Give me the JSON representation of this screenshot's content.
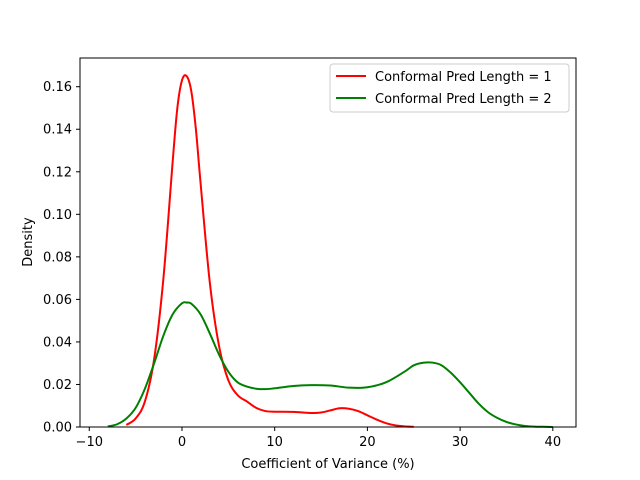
{
  "chart_data": {
    "type": "line",
    "title": "",
    "xlabel": "Coefficient of Variance (%)",
    "ylabel": "Density",
    "xlim": [
      -11,
      42.5
    ],
    "ylim": [
      0,
      0.1735
    ],
    "xticks": [
      -10,
      0,
      10,
      20,
      30,
      40
    ],
    "xtick_labels": [
      "−10",
      "0",
      "10",
      "20",
      "30",
      "40"
    ],
    "yticks": [
      0,
      0.02,
      0.04,
      0.06,
      0.08,
      0.1,
      0.12,
      0.14,
      0.16
    ],
    "ytick_labels": [
      "0.00",
      "0.02",
      "0.04",
      "0.06",
      "0.08",
      "0.10",
      "0.12",
      "0.14",
      "0.16"
    ],
    "grid": false,
    "legend_position": "top-right",
    "series": [
      {
        "name": "Conformal Pred Length = 1",
        "color": "#ff0000",
        "x": [
          -6,
          -5,
          -4,
          -3,
          -2,
          -1,
          -0.5,
          0,
          0.5,
          1,
          1.5,
          2,
          3,
          4,
          5,
          6,
          7,
          8,
          9,
          10,
          12,
          14,
          15,
          16,
          17,
          18,
          19,
          20,
          21,
          22,
          23,
          24,
          25
        ],
        "y": [
          0.001,
          0.004,
          0.012,
          0.032,
          0.07,
          0.125,
          0.15,
          0.163,
          0.165,
          0.158,
          0.14,
          0.115,
          0.068,
          0.038,
          0.022,
          0.015,
          0.012,
          0.009,
          0.0075,
          0.0072,
          0.0071,
          0.0066,
          0.0068,
          0.0078,
          0.0088,
          0.0086,
          0.0075,
          0.0055,
          0.0035,
          0.0018,
          0.0008,
          0.0003,
          0.0001
        ]
      },
      {
        "name": "Conformal Pred Length = 2",
        "color": "#008000",
        "x": [
          -8,
          -7,
          -6,
          -5,
          -4,
          -3,
          -2,
          -1,
          0,
          0.5,
          1,
          2,
          3,
          4,
          5,
          6,
          7,
          8,
          9,
          10,
          12,
          14,
          16,
          18,
          20,
          22,
          24,
          25,
          26,
          27,
          28,
          29,
          30,
          31,
          32,
          33,
          34,
          35,
          36,
          37,
          38,
          39,
          40
        ],
        "y": [
          0.0003,
          0.0013,
          0.004,
          0.009,
          0.018,
          0.03,
          0.043,
          0.053,
          0.0582,
          0.0585,
          0.058,
          0.053,
          0.044,
          0.034,
          0.026,
          0.021,
          0.019,
          0.018,
          0.0178,
          0.0182,
          0.0193,
          0.0197,
          0.0195,
          0.0185,
          0.0187,
          0.021,
          0.026,
          0.029,
          0.0302,
          0.0303,
          0.029,
          0.0255,
          0.021,
          0.016,
          0.011,
          0.007,
          0.0043,
          0.0024,
          0.0012,
          0.0005,
          0.0002,
          0.0001,
          0
        ]
      }
    ]
  }
}
